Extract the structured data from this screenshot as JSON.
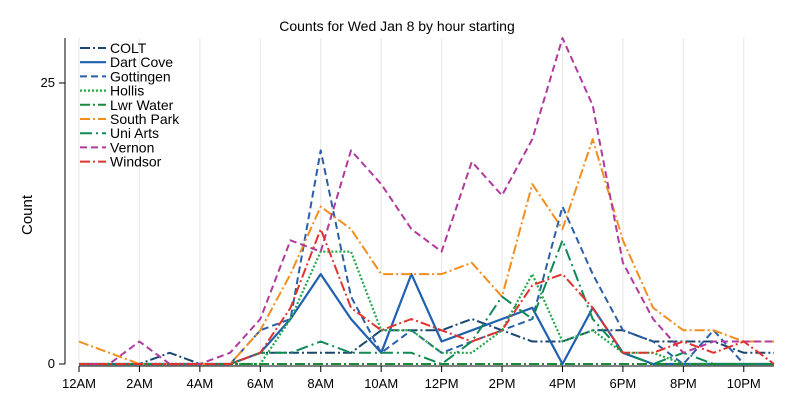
{
  "chart_data": {
    "type": "line",
    "title": "Counts for Wed Jan 8 by hour starting",
    "xlabel": "",
    "ylabel": "Count",
    "x": [
      0,
      1,
      2,
      3,
      4,
      5,
      6,
      7,
      8,
      9,
      10,
      11,
      12,
      13,
      14,
      15,
      16,
      17,
      18,
      19,
      20,
      21,
      22,
      23
    ],
    "xticks": [
      {
        "x": 0,
        "label": "12AM"
      },
      {
        "x": 2,
        "label": "2AM"
      },
      {
        "x": 4,
        "label": "4AM"
      },
      {
        "x": 6,
        "label": "6AM"
      },
      {
        "x": 8,
        "label": "8AM"
      },
      {
        "x": 10,
        "label": "10AM"
      },
      {
        "x": 12,
        "label": "12PM"
      },
      {
        "x": 14,
        "label": "2PM"
      },
      {
        "x": 16,
        "label": "4PM"
      },
      {
        "x": 18,
        "label": "6PM"
      },
      {
        "x": 20,
        "label": "8PM"
      },
      {
        "x": 22,
        "label": "10PM"
      }
    ],
    "yticks": [
      {
        "y": 0,
        "label": "0"
      },
      {
        "y": 25,
        "label": "25"
      }
    ],
    "xlim": [
      0,
      23
    ],
    "ylim": [
      0,
      29
    ],
    "grid": "vertical",
    "legend": "top-left",
    "series": [
      {
        "name": "COLT",
        "color": "#1a476f",
        "dash": "10,3,2,3",
        "width": 2,
        "values": [
          0,
          0,
          0,
          1,
          0,
          0,
          1,
          1,
          1,
          1,
          3,
          3,
          3,
          4,
          3,
          2,
          2,
          3,
          3,
          2,
          2,
          2,
          1,
          1
        ]
      },
      {
        "name": "Dart Cove",
        "color": "#2060b0",
        "dash": "",
        "width": 2.2,
        "values": [
          0,
          0,
          0,
          0,
          0,
          0,
          1,
          4,
          8,
          4,
          1,
          8,
          2,
          3,
          4,
          5,
          0,
          5,
          1,
          0,
          0,
          0,
          0,
          0
        ]
      },
      {
        "name": "Gottingen",
        "color": "#2a5fa8",
        "dash": "7,4",
        "width": 2,
        "values": [
          0,
          0,
          0,
          0,
          0,
          0,
          3,
          4,
          19,
          6,
          1,
          3,
          1,
          2,
          3,
          4,
          14,
          8,
          3,
          2,
          0,
          3,
          0,
          0
        ]
      },
      {
        "name": "Hollis",
        "color": "#21a84a",
        "dash": "2,2",
        "width": 2.2,
        "values": [
          0,
          0,
          0,
          0,
          0,
          0,
          0,
          4,
          10,
          10,
          3,
          3,
          1,
          1,
          3,
          8,
          2,
          3,
          1,
          1,
          0,
          0,
          0,
          0
        ]
      },
      {
        "name": "Lwr Water",
        "color": "#1a8a3a",
        "dash": "10,3,2,3",
        "width": 2,
        "values": [
          0,
          0,
          0,
          0,
          0,
          0,
          0,
          0,
          0,
          0,
          0,
          0,
          0,
          0,
          0,
          0,
          0,
          0,
          0,
          0,
          0,
          0,
          0,
          0
        ]
      },
      {
        "name": "South Park",
        "color": "#f28e1f",
        "dash": "10,3,2,3",
        "width": 2,
        "values": [
          2,
          1,
          0,
          0,
          0,
          0,
          3,
          8,
          14,
          12,
          8,
          8,
          8,
          9,
          6,
          16,
          12,
          20,
          11,
          5,
          3,
          3,
          2,
          2
        ]
      },
      {
        "name": "Uni Arts",
        "color": "#0f8a55",
        "dash": "12,4,2,4",
        "width": 2,
        "values": [
          0,
          0,
          0,
          0,
          0,
          0,
          1,
          1,
          2,
          1,
          1,
          1,
          0,
          2,
          6,
          4,
          11,
          4,
          1,
          0,
          1,
          0,
          0,
          0
        ]
      },
      {
        "name": "Vernon",
        "color": "#b03a9e",
        "dash": "7,4",
        "width": 2,
        "values": [
          0,
          0,
          2,
          0,
          0,
          1,
          4,
          11,
          10,
          19,
          16,
          12,
          10,
          18,
          15,
          20,
          29,
          23,
          9,
          4,
          1,
          2,
          2,
          2
        ]
      },
      {
        "name": "Windsor",
        "color": "#e0332e",
        "dash": "10,3,2,3",
        "width": 2,
        "values": [
          0,
          0,
          0,
          0,
          0,
          0,
          1,
          5,
          12,
          5,
          3,
          4,
          3,
          2,
          3,
          7,
          8,
          5,
          1,
          1,
          2,
          1,
          2,
          0
        ]
      }
    ]
  }
}
